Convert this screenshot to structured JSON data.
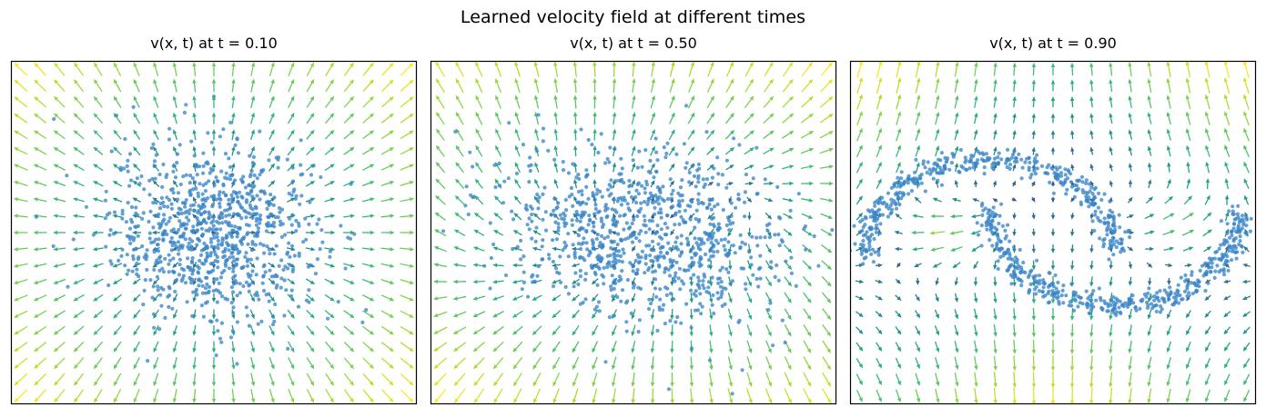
{
  "figure": {
    "title": "Learned velocity field at different times"
  },
  "palette": {
    "particles": "#3a85c8",
    "arrow_low": "#440154",
    "arrow_mid": "#21918c",
    "arrow_high": "#fde725"
  },
  "chart_data": [
    {
      "type": "scatter",
      "overlay": "quiver",
      "title": "v(x, t)  at t = 0.10",
      "t": 0.1,
      "xlabel": "",
      "ylabel": "",
      "xlim": [
        -3,
        3
      ],
      "ylim": [
        -3,
        3
      ],
      "axis_ticks": "hidden",
      "grid": false,
      "legend": "none",
      "quiver_grid": [
        21,
        21
      ],
      "point_distribution": {
        "shape": "gaussian_blob",
        "count": 900,
        "center": [
          0,
          0
        ],
        "spread": 0.75
      },
      "field_pattern": "radial_outward"
    },
    {
      "type": "scatter",
      "overlay": "quiver",
      "title": "v(x, t)  at t = 0.50",
      "t": 0.5,
      "xlabel": "",
      "ylabel": "",
      "xlim": [
        -3,
        3
      ],
      "ylim": [
        -3,
        3
      ],
      "axis_ticks": "hidden",
      "grid": false,
      "legend": "none",
      "quiver_grid": [
        21,
        21
      ],
      "point_distribution": {
        "shape": "stretched_blob",
        "count": 900,
        "center": [
          0,
          0
        ],
        "spread": [
          1.05,
          0.72
        ]
      },
      "field_pattern": "mixed_swirl"
    },
    {
      "type": "scatter",
      "overlay": "quiver",
      "title": "v(x, t)  at t = 0.90",
      "t": 0.9,
      "xlabel": "",
      "ylabel": "",
      "xlim": [
        -3,
        3
      ],
      "ylim": [
        -3,
        3
      ],
      "axis_ticks": "hidden",
      "grid": false,
      "legend": "none",
      "quiver_grid": [
        21,
        21
      ],
      "point_distribution": {
        "shape": "two_moons",
        "count": 900,
        "noise": 0.1
      },
      "field_pattern": "inward_to_moons"
    }
  ]
}
